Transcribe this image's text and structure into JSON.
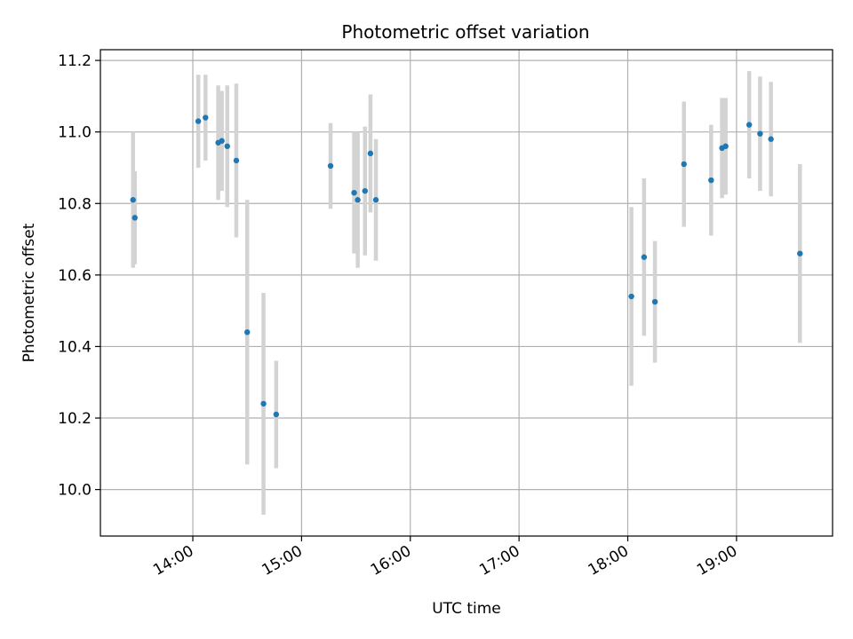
{
  "chart_data": {
    "type": "scatter",
    "title": "Photometric offset variation",
    "xlabel": "UTC time",
    "ylabel": "Photometric offset",
    "x_ticks": [
      "14:00",
      "15:00",
      "16:00",
      "17:00",
      "18:00",
      "19:00"
    ],
    "y_ticks": [
      "10.0",
      "10.2",
      "10.4",
      "10.6",
      "10.8",
      "11.0",
      "11.2"
    ],
    "xlim": [
      "13:09",
      "19:53"
    ],
    "ylim": [
      9.87,
      11.23
    ],
    "grid": true,
    "colors": {
      "point": "#1f77b4",
      "errorbar": "#d3d3d3",
      "grid": "#b0b0b0"
    },
    "series": [
      {
        "points": [
          {
            "x": "13:27",
            "y": 10.81,
            "err": 0.19
          },
          {
            "x": "13:28",
            "y": 10.76,
            "err": 0.13
          },
          {
            "x": "14:03",
            "y": 11.03,
            "err": 0.13
          },
          {
            "x": "14:07",
            "y": 11.04,
            "err": 0.12
          },
          {
            "x": "14:14",
            "y": 10.97,
            "err": 0.16
          },
          {
            "x": "14:16",
            "y": 10.975,
            "err": 0.14
          },
          {
            "x": "14:19",
            "y": 10.96,
            "err": 0.17
          },
          {
            "x": "14:24",
            "y": 10.92,
            "err": 0.215
          },
          {
            "x": "14:30",
            "y": 10.44,
            "err": 0.37
          },
          {
            "x": "14:39",
            "y": 10.24,
            "err": 0.31
          },
          {
            "x": "14:46",
            "y": 10.21,
            "err": 0.15
          },
          {
            "x": "15:16",
            "y": 10.905,
            "err": 0.12
          },
          {
            "x": "15:29",
            "y": 10.83,
            "err": 0.17
          },
          {
            "x": "15:31",
            "y": 10.81,
            "err": 0.19
          },
          {
            "x": "15:35",
            "y": 10.835,
            "err": 0.18
          },
          {
            "x": "15:38",
            "y": 10.94,
            "err": 0.165
          },
          {
            "x": "15:41",
            "y": 10.81,
            "err": 0.17
          },
          {
            "x": "18:02",
            "y": 10.54,
            "err": 0.25
          },
          {
            "x": "18:09",
            "y": 10.65,
            "err": 0.22
          },
          {
            "x": "18:15",
            "y": 10.525,
            "err": 0.17
          },
          {
            "x": "18:31",
            "y": 10.91,
            "err": 0.175
          },
          {
            "x": "18:46",
            "y": 10.865,
            "err": 0.155
          },
          {
            "x": "18:52",
            "y": 10.955,
            "err": 0.14
          },
          {
            "x": "18:54",
            "y": 10.96,
            "err": 0.135
          },
          {
            "x": "19:07",
            "y": 11.02,
            "err": 0.15
          },
          {
            "x": "19:13",
            "y": 10.995,
            "err": 0.16
          },
          {
            "x": "19:19",
            "y": 10.98,
            "err": 0.16
          },
          {
            "x": "19:35",
            "y": 10.66,
            "err": 0.25
          }
        ]
      }
    ]
  }
}
